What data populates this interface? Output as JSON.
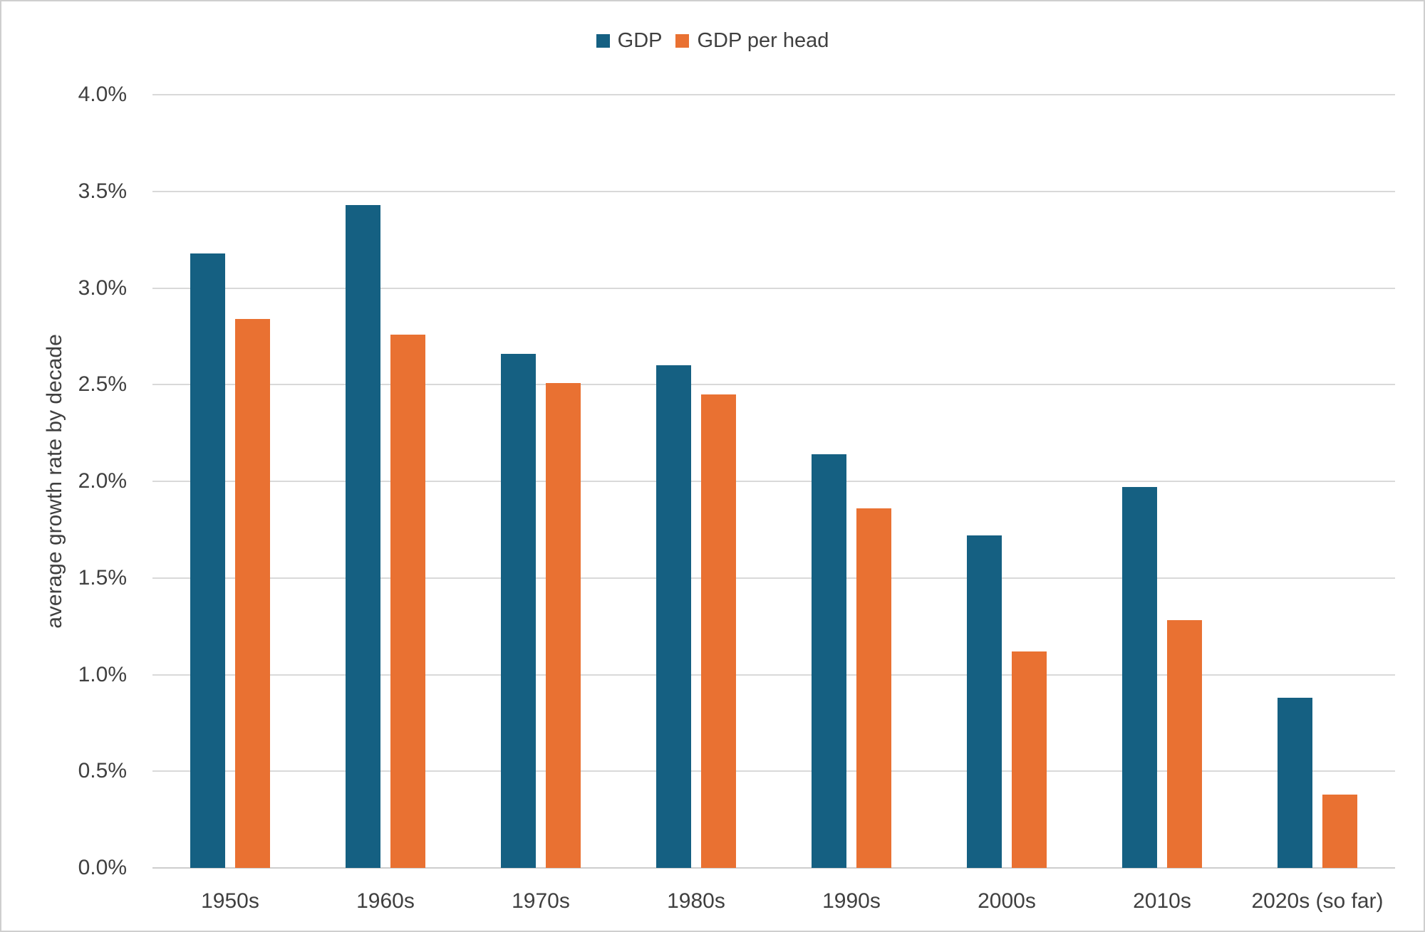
{
  "chart_data": {
    "type": "bar",
    "ylabel": "average growth rate by decade",
    "categories": [
      "1950s",
      "1960s",
      "1970s",
      "1980s",
      "1990s",
      "2000s",
      "2010s",
      "2020s (so far)"
    ],
    "series": [
      {
        "name": "GDP",
        "color": "#156082",
        "values": [
          3.18,
          3.43,
          2.66,
          2.6,
          2.14,
          1.72,
          1.97,
          0.88
        ]
      },
      {
        "name": "GDP per head",
        "color": "#E97132",
        "values": [
          2.84,
          2.76,
          2.51,
          2.45,
          1.86,
          1.12,
          1.28,
          0.38
        ]
      }
    ],
    "ylim": [
      0,
      4
    ],
    "yticks": [
      {
        "value": 0.0,
        "label": "0.0%"
      },
      {
        "value": 0.5,
        "label": "0.5%"
      },
      {
        "value": 1.0,
        "label": "1.0%"
      },
      {
        "value": 1.5,
        "label": "1.5%"
      },
      {
        "value": 2.0,
        "label": "2.0%"
      },
      {
        "value": 2.5,
        "label": "2.5%"
      },
      {
        "value": 3.0,
        "label": "3.0%"
      },
      {
        "value": 3.5,
        "label": "3.5%"
      },
      {
        "value": 4.0,
        "label": "4.0%"
      }
    ],
    "grid": "horizontal",
    "legend_position": "top-center",
    "colors": {
      "grid": "#d9d9d9",
      "axis": "#cdcdcd",
      "text": "#404040",
      "frame_border": "#cfcfcf"
    }
  }
}
